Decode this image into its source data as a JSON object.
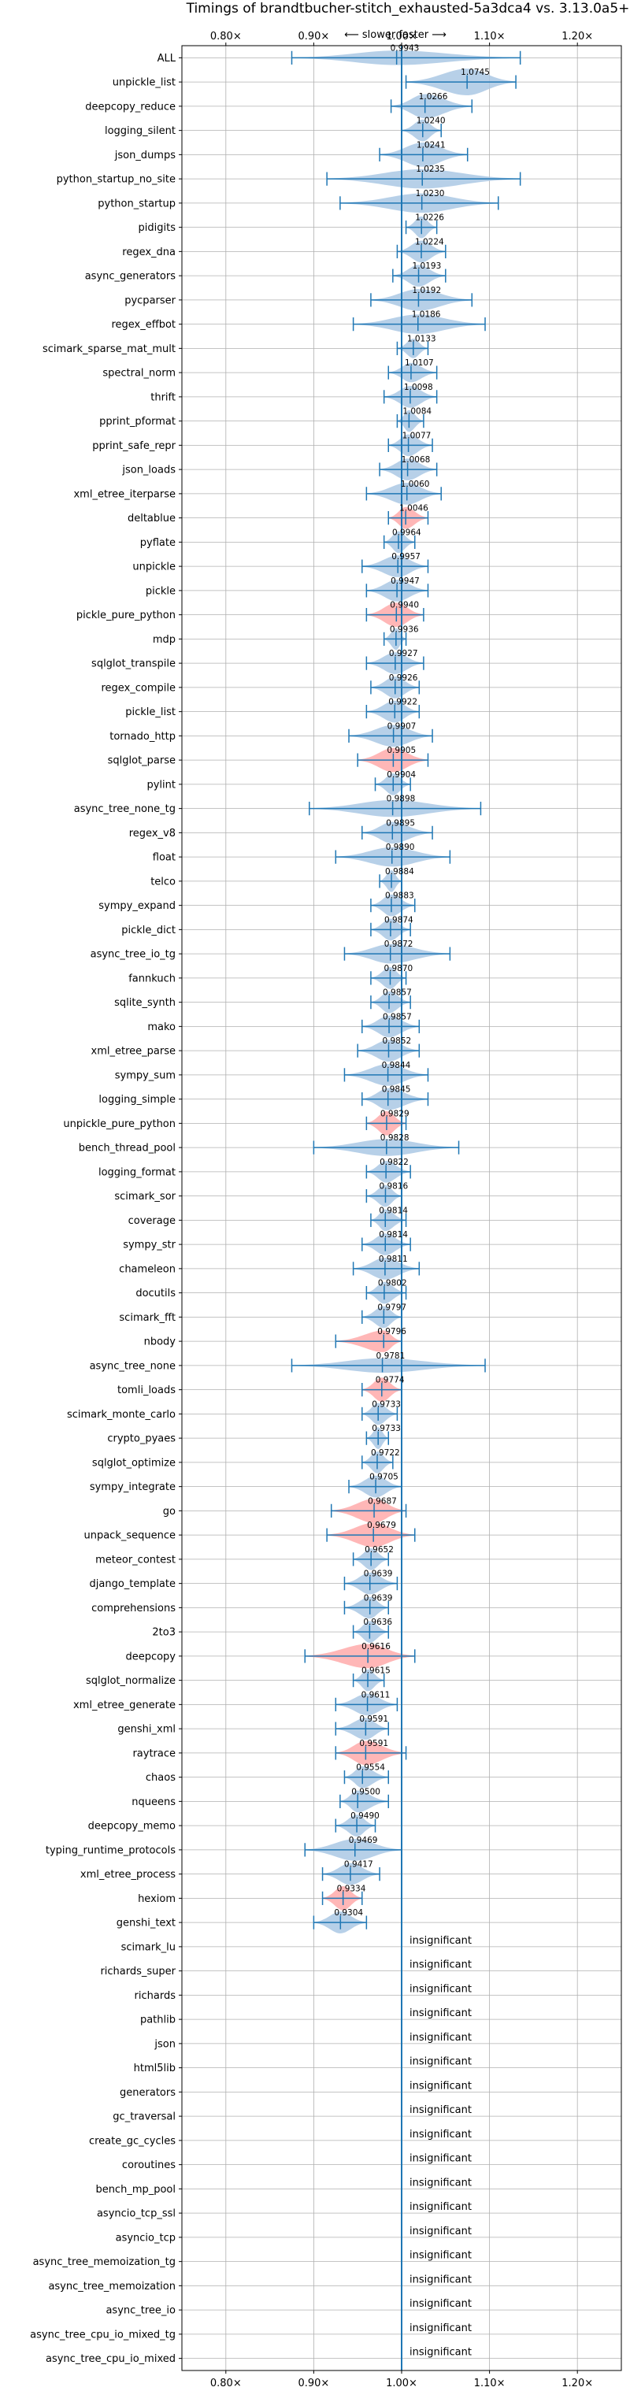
{
  "chart_data": {
    "type": "violin",
    "title": "Timings of brandtbucher-stitch_exhausted-5a3dca4 vs. 3.13.0a5+",
    "direction_label": "⟵ slower    faster ⟶",
    "xlim": [
      0.75,
      1.25
    ],
    "xticks": [
      0.8,
      0.9,
      1.0,
      1.1,
      1.2
    ],
    "xtick_labels": [
      "0.80×",
      "0.90×",
      "1.00×",
      "1.10×",
      "1.20×"
    ],
    "grid": true,
    "reference_line": 1.0,
    "colors": {
      "faster": "#aac8e4",
      "slower": "#ffaaaa",
      "line": "#1f77b4"
    },
    "insignificant_label": "insignificant",
    "benchmarks": [
      {
        "name": "ALL",
        "value": 0.9943,
        "lo": 0.875,
        "hi": 1.135,
        "w": 0.3,
        "color": "faster",
        "label": "0.9943"
      },
      {
        "name": "unpickle_list",
        "value": 1.0745,
        "lo": 1.005,
        "hi": 1.13,
        "w": 0.55,
        "color": "faster",
        "label": "1.0745"
      },
      {
        "name": "deepcopy_reduce",
        "value": 1.0266,
        "lo": 0.988,
        "hi": 1.08,
        "w": 0.5,
        "color": "faster",
        "label": "1.0266"
      },
      {
        "name": "logging_silent",
        "value": 1.024,
        "lo": 1.0,
        "hi": 1.045,
        "w": 0.45,
        "color": "faster",
        "label": "1.0240"
      },
      {
        "name": "json_dumps",
        "value": 1.0241,
        "lo": 0.975,
        "hi": 1.075,
        "w": 0.5,
        "color": "faster",
        "label": "1.0241"
      },
      {
        "name": "python_startup_no_site",
        "value": 1.0235,
        "lo": 0.915,
        "hi": 1.135,
        "w": 0.4,
        "color": "faster",
        "label": "1.0235"
      },
      {
        "name": "python_startup",
        "value": 1.023,
        "lo": 0.93,
        "hi": 1.11,
        "w": 0.4,
        "color": "faster",
        "label": "1.0230"
      },
      {
        "name": "pidigits",
        "value": 1.0226,
        "lo": 1.005,
        "hi": 1.04,
        "w": 0.45,
        "color": "faster",
        "label": "1.0226"
      },
      {
        "name": "regex_dna",
        "value": 1.0224,
        "lo": 0.995,
        "hi": 1.05,
        "w": 0.45,
        "color": "faster",
        "label": "1.0224"
      },
      {
        "name": "async_generators",
        "value": 1.0193,
        "lo": 0.99,
        "hi": 1.05,
        "w": 0.45,
        "color": "faster",
        "label": "1.0193"
      },
      {
        "name": "pycparser",
        "value": 1.0192,
        "lo": 0.965,
        "hi": 1.08,
        "w": 0.45,
        "color": "faster",
        "label": "1.0192"
      },
      {
        "name": "regex_effbot",
        "value": 1.0186,
        "lo": 0.945,
        "hi": 1.095,
        "w": 0.4,
        "color": "faster",
        "label": "1.0186"
      },
      {
        "name": "scimark_sparse_mat_mult",
        "value": 1.0133,
        "lo": 0.995,
        "hi": 1.03,
        "w": 0.4,
        "color": "faster",
        "label": "1.0133"
      },
      {
        "name": "spectral_norm",
        "value": 1.0107,
        "lo": 0.985,
        "hi": 1.04,
        "w": 0.4,
        "color": "faster",
        "label": "1.0107"
      },
      {
        "name": "thrift",
        "value": 1.0098,
        "lo": 0.98,
        "hi": 1.04,
        "w": 0.45,
        "color": "faster",
        "label": "1.0098"
      },
      {
        "name": "pprint_pformat",
        "value": 1.0084,
        "lo": 0.995,
        "hi": 1.025,
        "w": 0.45,
        "color": "faster",
        "label": "1.0084"
      },
      {
        "name": "pprint_safe_repr",
        "value": 1.0077,
        "lo": 0.985,
        "hi": 1.035,
        "w": 0.45,
        "color": "faster",
        "label": "1.0077"
      },
      {
        "name": "json_loads",
        "value": 1.0068,
        "lo": 0.975,
        "hi": 1.04,
        "w": 0.45,
        "color": "faster",
        "label": "1.0068"
      },
      {
        "name": "xml_etree_iterparse",
        "value": 1.006,
        "lo": 0.96,
        "hi": 1.045,
        "w": 0.45,
        "color": "faster",
        "label": "1.0060"
      },
      {
        "name": "deltablue",
        "value": 1.0046,
        "lo": 0.985,
        "hi": 1.03,
        "w": 0.45,
        "color": "slower",
        "label": "1.0046"
      },
      {
        "name": "pyflate",
        "value": 0.9964,
        "lo": 0.98,
        "hi": 1.015,
        "w": 0.45,
        "color": "faster",
        "label": "0.9964"
      },
      {
        "name": "unpickle",
        "value": 0.9957,
        "lo": 0.955,
        "hi": 1.03,
        "w": 0.45,
        "color": "faster",
        "label": "0.9957"
      },
      {
        "name": "pickle",
        "value": 0.9947,
        "lo": 0.96,
        "hi": 1.03,
        "w": 0.45,
        "color": "faster",
        "label": "0.9947"
      },
      {
        "name": "pickle_pure_python",
        "value": 0.994,
        "lo": 0.96,
        "hi": 1.025,
        "w": 0.5,
        "color": "slower",
        "label": "0.9940"
      },
      {
        "name": "mdp",
        "value": 0.9936,
        "lo": 0.98,
        "hi": 1.005,
        "w": 0.45,
        "color": "faster",
        "label": "0.9936"
      },
      {
        "name": "sqlglot_transpile",
        "value": 0.9927,
        "lo": 0.96,
        "hi": 1.025,
        "w": 0.45,
        "color": "faster",
        "label": "0.9927"
      },
      {
        "name": "regex_compile",
        "value": 0.9926,
        "lo": 0.965,
        "hi": 1.02,
        "w": 0.45,
        "color": "faster",
        "label": "0.9926"
      },
      {
        "name": "pickle_list",
        "value": 0.9922,
        "lo": 0.96,
        "hi": 1.02,
        "w": 0.45,
        "color": "faster",
        "label": "0.9922"
      },
      {
        "name": "tornado_http",
        "value": 0.9907,
        "lo": 0.94,
        "hi": 1.035,
        "w": 0.45,
        "color": "faster",
        "label": "0.9907"
      },
      {
        "name": "sqlglot_parse",
        "value": 0.9905,
        "lo": 0.95,
        "hi": 1.03,
        "w": 0.5,
        "color": "slower",
        "label": "0.9905"
      },
      {
        "name": "pylint",
        "value": 0.9904,
        "lo": 0.97,
        "hi": 1.01,
        "w": 0.45,
        "color": "faster",
        "label": "0.9904"
      },
      {
        "name": "async_tree_none_tg",
        "value": 0.9898,
        "lo": 0.895,
        "hi": 1.09,
        "w": 0.35,
        "color": "faster",
        "label": "0.9898"
      },
      {
        "name": "regex_v8",
        "value": 0.9895,
        "lo": 0.955,
        "hi": 1.035,
        "w": 0.45,
        "color": "faster",
        "label": "0.9895"
      },
      {
        "name": "float",
        "value": 0.989,
        "lo": 0.925,
        "hi": 1.055,
        "w": 0.4,
        "color": "faster",
        "label": "0.9890"
      },
      {
        "name": "telco",
        "value": 0.9884,
        "lo": 0.975,
        "hi": 1.0,
        "w": 0.45,
        "color": "faster",
        "label": "0.9884"
      },
      {
        "name": "sympy_expand",
        "value": 0.9883,
        "lo": 0.965,
        "hi": 1.015,
        "w": 0.45,
        "color": "faster",
        "label": "0.9883"
      },
      {
        "name": "pickle_dict",
        "value": 0.9874,
        "lo": 0.965,
        "hi": 1.01,
        "w": 0.45,
        "color": "faster",
        "label": "0.9874"
      },
      {
        "name": "async_tree_io_tg",
        "value": 0.9872,
        "lo": 0.935,
        "hi": 1.055,
        "w": 0.4,
        "color": "faster",
        "label": "0.9872"
      },
      {
        "name": "fannkuch",
        "value": 0.987,
        "lo": 0.965,
        "hi": 1.005,
        "w": 0.45,
        "color": "faster",
        "label": "0.9870"
      },
      {
        "name": "sqlite_synth",
        "value": 0.9857,
        "lo": 0.965,
        "hi": 1.01,
        "w": 0.45,
        "color": "faster",
        "label": "0.9857"
      },
      {
        "name": "mako",
        "value": 0.9857,
        "lo": 0.955,
        "hi": 1.02,
        "w": 0.45,
        "color": "faster",
        "label": "0.9857"
      },
      {
        "name": "xml_etree_parse",
        "value": 0.9852,
        "lo": 0.95,
        "hi": 1.02,
        "w": 0.45,
        "color": "faster",
        "label": "0.9852"
      },
      {
        "name": "sympy_sum",
        "value": 0.9844,
        "lo": 0.935,
        "hi": 1.03,
        "w": 0.45,
        "color": "faster",
        "label": "0.9844"
      },
      {
        "name": "logging_simple",
        "value": 0.9845,
        "lo": 0.955,
        "hi": 1.03,
        "w": 0.45,
        "color": "faster",
        "label": "0.9845"
      },
      {
        "name": "unpickle_pure_python",
        "value": 0.9829,
        "lo": 0.96,
        "hi": 1.005,
        "w": 0.5,
        "color": "slower",
        "label": "0.9829"
      },
      {
        "name": "bench_thread_pool",
        "value": 0.9828,
        "lo": 0.9,
        "hi": 1.065,
        "w": 0.35,
        "color": "faster",
        "label": "0.9828"
      },
      {
        "name": "logging_format",
        "value": 0.9822,
        "lo": 0.96,
        "hi": 1.01,
        "w": 0.45,
        "color": "faster",
        "label": "0.9822"
      },
      {
        "name": "scimark_sor",
        "value": 0.9816,
        "lo": 0.96,
        "hi": 1.0,
        "w": 0.45,
        "color": "faster",
        "label": "0.9816"
      },
      {
        "name": "coverage",
        "value": 0.9814,
        "lo": 0.965,
        "hi": 1.005,
        "w": 0.45,
        "color": "faster",
        "label": "0.9814"
      },
      {
        "name": "sympy_str",
        "value": 0.9814,
        "lo": 0.955,
        "hi": 1.01,
        "w": 0.45,
        "color": "faster",
        "label": "0.9814"
      },
      {
        "name": "chameleon",
        "value": 0.9811,
        "lo": 0.945,
        "hi": 1.02,
        "w": 0.45,
        "color": "faster",
        "label": "0.9811"
      },
      {
        "name": "docutils",
        "value": 0.9802,
        "lo": 0.96,
        "hi": 1.005,
        "w": 0.45,
        "color": "faster",
        "label": "0.9802"
      },
      {
        "name": "scimark_fft",
        "value": 0.9797,
        "lo": 0.955,
        "hi": 1.0,
        "w": 0.45,
        "color": "faster",
        "label": "0.9797"
      },
      {
        "name": "nbody",
        "value": 0.9796,
        "lo": 0.925,
        "hi": 1.0,
        "w": 0.45,
        "color": "slower",
        "label": "0.9796"
      },
      {
        "name": "async_tree_none",
        "value": 0.9781,
        "lo": 0.875,
        "hi": 1.095,
        "w": 0.3,
        "color": "faster",
        "label": "0.9781"
      },
      {
        "name": "tomli_loads",
        "value": 0.9774,
        "lo": 0.955,
        "hi": 1.0,
        "w": 0.5,
        "color": "slower",
        "label": "0.9774"
      },
      {
        "name": "scimark_monte_carlo",
        "value": 0.9733,
        "lo": 0.955,
        "hi": 0.995,
        "w": 0.45,
        "color": "faster",
        "label": "0.9733"
      },
      {
        "name": "crypto_pyaes",
        "value": 0.9733,
        "lo": 0.96,
        "hi": 0.985,
        "w": 0.45,
        "color": "faster",
        "label": "0.9733"
      },
      {
        "name": "sqlglot_optimize",
        "value": 0.9722,
        "lo": 0.955,
        "hi": 0.99,
        "w": 0.45,
        "color": "faster",
        "label": "0.9722"
      },
      {
        "name": "sympy_integrate",
        "value": 0.9705,
        "lo": 0.94,
        "hi": 1.0,
        "w": 0.45,
        "color": "faster",
        "label": "0.9705"
      },
      {
        "name": "go",
        "value": 0.9687,
        "lo": 0.92,
        "hi": 1.005,
        "w": 0.5,
        "color": "slower",
        "label": "0.9687"
      },
      {
        "name": "unpack_sequence",
        "value": 0.9679,
        "lo": 0.915,
        "hi": 1.015,
        "w": 0.5,
        "color": "slower",
        "label": "0.9679"
      },
      {
        "name": "meteor_contest",
        "value": 0.9652,
        "lo": 0.945,
        "hi": 0.985,
        "w": 0.45,
        "color": "faster",
        "label": "0.9652"
      },
      {
        "name": "django_template",
        "value": 0.9639,
        "lo": 0.935,
        "hi": 0.995,
        "w": 0.45,
        "color": "faster",
        "label": "0.9639"
      },
      {
        "name": "comprehensions",
        "value": 0.9639,
        "lo": 0.935,
        "hi": 0.985,
        "w": 0.45,
        "color": "faster",
        "label": "0.9639"
      },
      {
        "name": "2to3",
        "value": 0.9636,
        "lo": 0.945,
        "hi": 0.985,
        "w": 0.45,
        "color": "faster",
        "label": "0.9636"
      },
      {
        "name": "deepcopy",
        "value": 0.9616,
        "lo": 0.89,
        "hi": 1.015,
        "w": 0.5,
        "color": "slower",
        "label": "0.9616"
      },
      {
        "name": "sqlglot_normalize",
        "value": 0.9615,
        "lo": 0.945,
        "hi": 0.98,
        "w": 0.45,
        "color": "faster",
        "label": "0.9615"
      },
      {
        "name": "xml_etree_generate",
        "value": 0.9611,
        "lo": 0.925,
        "hi": 0.995,
        "w": 0.45,
        "color": "faster",
        "label": "0.9611"
      },
      {
        "name": "genshi_xml",
        "value": 0.9591,
        "lo": 0.925,
        "hi": 0.985,
        "w": 0.45,
        "color": "faster",
        "label": "0.9591"
      },
      {
        "name": "raytrace",
        "value": 0.9591,
        "lo": 0.925,
        "hi": 1.005,
        "w": 0.5,
        "color": "slower",
        "label": "0.9591"
      },
      {
        "name": "chaos",
        "value": 0.9554,
        "lo": 0.935,
        "hi": 0.985,
        "w": 0.45,
        "color": "faster",
        "label": "0.9554"
      },
      {
        "name": "nqueens",
        "value": 0.95,
        "lo": 0.93,
        "hi": 0.985,
        "w": 0.45,
        "color": "faster",
        "label": "0.9500"
      },
      {
        "name": "deepcopy_memo",
        "value": 0.949,
        "lo": 0.925,
        "hi": 0.97,
        "w": 0.45,
        "color": "faster",
        "label": "0.9490"
      },
      {
        "name": "typing_runtime_protocols",
        "value": 0.9469,
        "lo": 0.89,
        "hi": 1.0,
        "w": 0.45,
        "color": "faster",
        "label": "0.9469"
      },
      {
        "name": "xml_etree_process",
        "value": 0.9417,
        "lo": 0.91,
        "hi": 0.975,
        "w": 0.45,
        "color": "faster",
        "label": "0.9417"
      },
      {
        "name": "hexiom",
        "value": 0.9334,
        "lo": 0.91,
        "hi": 0.955,
        "w": 0.5,
        "color": "slower",
        "label": "0.9334"
      },
      {
        "name": "genshi_text",
        "value": 0.9304,
        "lo": 0.9,
        "hi": 0.96,
        "w": 0.45,
        "color": "faster",
        "label": "0.9304"
      },
      {
        "name": "scimark_lu",
        "insignificant": true
      },
      {
        "name": "richards_super",
        "insignificant": true
      },
      {
        "name": "richards",
        "insignificant": true
      },
      {
        "name": "pathlib",
        "insignificant": true
      },
      {
        "name": "json",
        "insignificant": true
      },
      {
        "name": "html5lib",
        "insignificant": true
      },
      {
        "name": "generators",
        "insignificant": true
      },
      {
        "name": "gc_traversal",
        "insignificant": true
      },
      {
        "name": "create_gc_cycles",
        "insignificant": true
      },
      {
        "name": "coroutines",
        "insignificant": true
      },
      {
        "name": "bench_mp_pool",
        "insignificant": true
      },
      {
        "name": "asyncio_tcp_ssl",
        "insignificant": true
      },
      {
        "name": "asyncio_tcp",
        "insignificant": true
      },
      {
        "name": "async_tree_memoization_tg",
        "insignificant": true
      },
      {
        "name": "async_tree_memoization",
        "insignificant": true
      },
      {
        "name": "async_tree_io",
        "insignificant": true
      },
      {
        "name": "async_tree_cpu_io_mixed_tg",
        "insignificant": true
      },
      {
        "name": "async_tree_cpu_io_mixed",
        "insignificant": true
      }
    ]
  }
}
